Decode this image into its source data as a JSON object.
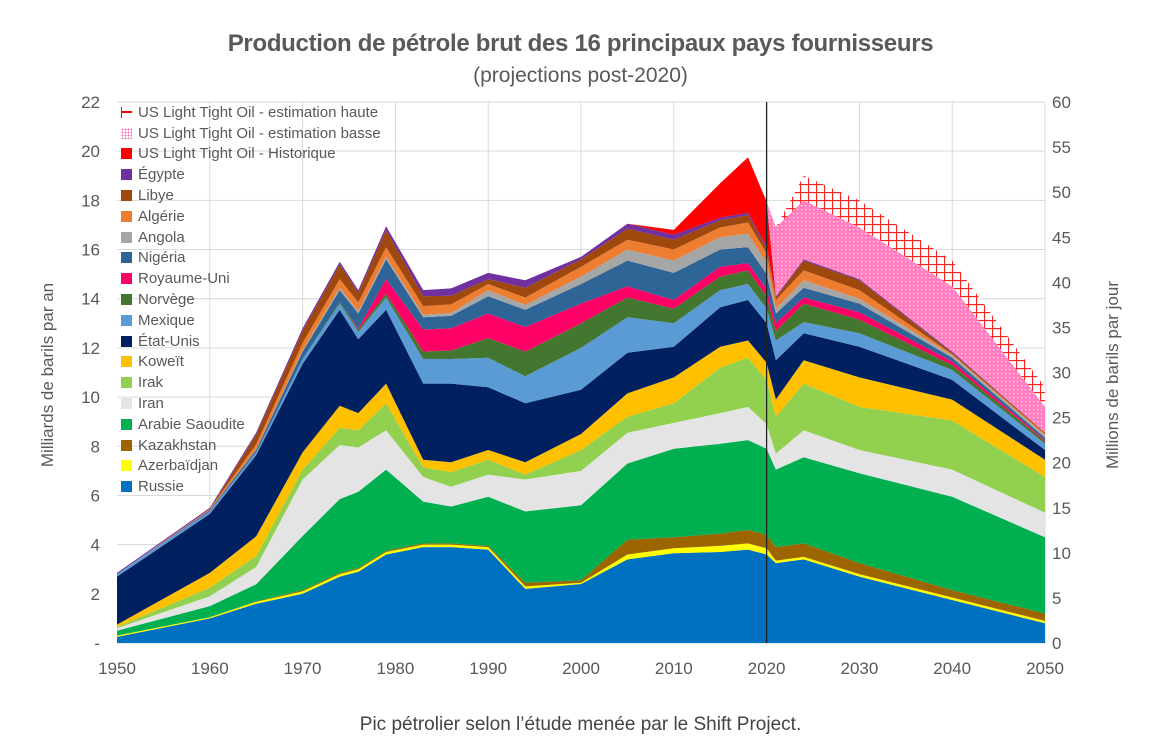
{
  "title": "Production de pétrole brut des 16 principaux pays fournisseurs",
  "subtitle": "(projections post-2020)",
  "caption": "Pic pétrolier selon l’étude menée par le Shift Project.",
  "chart_data": {
    "type": "area",
    "stacked": true,
    "title": "Production de pétrole brut des 16 principaux pays fournisseurs",
    "subtitle": "(projections post-2020)",
    "ylabel": "Milliards de barils par an",
    "ylabel_right": "Millions de barils par jour",
    "xlim": [
      1950,
      2050
    ],
    "ylim": [
      0,
      22
    ],
    "ylim_right": [
      0,
      60
    ],
    "xticks": [
      "1950",
      "1960",
      "1970",
      "1980",
      "1990",
      "2000",
      "2010",
      "2020",
      "2030",
      "2040",
      "2050"
    ],
    "yticks_left": [
      "-",
      "2",
      "4",
      "6",
      "8",
      "10",
      "12",
      "14",
      "16",
      "18",
      "20",
      "22"
    ],
    "yticks_right": [
      "0",
      "5",
      "10",
      "15",
      "20",
      "25",
      "30",
      "35",
      "40",
      "45",
      "50",
      "55",
      "60"
    ],
    "grid": true,
    "annotation_line_year": 2020,
    "legend_position": "top-left",
    "x": [
      1950,
      1960,
      1965,
      1970,
      1974,
      1976,
      1979,
      1983,
      1986,
      1990,
      1994,
      2000,
      2005,
      2010,
      2015,
      2018,
      2020,
      2021,
      2024,
      2030,
      2040,
      2050
    ],
    "series": [
      {
        "name": "Russie",
        "color": "#0070C0",
        "values": [
          0.25,
          1.0,
          1.6,
          2.0,
          2.7,
          2.9,
          3.6,
          3.9,
          3.9,
          3.8,
          2.2,
          2.4,
          3.4,
          3.65,
          3.7,
          3.8,
          3.6,
          3.25,
          3.4,
          2.7,
          1.75,
          0.8
        ]
      },
      {
        "name": "Azerbaïdjan",
        "color": "#FFFF00",
        "values": [
          0.05,
          0.05,
          0.07,
          0.1,
          0.1,
          0.1,
          0.1,
          0.1,
          0.1,
          0.1,
          0.1,
          0.05,
          0.2,
          0.2,
          0.25,
          0.25,
          0.25,
          0.1,
          0.1,
          0.1,
          0.1,
          0.1
        ]
      },
      {
        "name": "Kazakhstan",
        "color": "#9C6500",
        "values": [
          0,
          0,
          0.02,
          0.05,
          0.05,
          0.05,
          0.05,
          0.05,
          0.05,
          0.05,
          0.15,
          0.1,
          0.6,
          0.45,
          0.5,
          0.55,
          0.55,
          0.55,
          0.55,
          0.45,
          0.3,
          0.3
        ]
      },
      {
        "name": "Arabie Saoudite",
        "color": "#00B050",
        "values": [
          0.2,
          0.45,
          0.7,
          2.2,
          3.0,
          3.1,
          3.3,
          1.7,
          1.5,
          2.0,
          2.9,
          3.05,
          3.1,
          3.6,
          3.65,
          3.65,
          3.5,
          3.15,
          3.5,
          3.65,
          3.8,
          3.1
        ]
      },
      {
        "name": "Iran",
        "color": "#E4E4E4",
        "values": [
          0.1,
          0.4,
          0.7,
          2.3,
          2.2,
          1.8,
          1.6,
          1.0,
          0.8,
          0.9,
          1.3,
          1.4,
          1.25,
          1.05,
          1.25,
          1.35,
          1.0,
          0.65,
          1.1,
          0.95,
          1.1,
          1.0
        ]
      },
      {
        "name": "Irak",
        "color": "#92D050",
        "values": [
          0.05,
          0.35,
          0.45,
          0.4,
          0.7,
          0.7,
          1.1,
          0.4,
          0.6,
          0.6,
          0.2,
          0.85,
          0.65,
          0.8,
          1.85,
          2.0,
          1.8,
          1.5,
          1.9,
          1.75,
          2.0,
          1.45
        ]
      },
      {
        "name": "Koweït",
        "color": "#FFC000",
        "values": [
          0.1,
          0.6,
          0.8,
          0.7,
          0.9,
          0.7,
          0.8,
          0.3,
          0.4,
          0.4,
          0.5,
          0.65,
          0.95,
          1.05,
          0.85,
          0.7,
          0.7,
          0.7,
          0.95,
          1.2,
          0.85,
          0.7
        ]
      },
      {
        "name": "État-Unis",
        "color": "#002060",
        "values": [
          1.95,
          2.4,
          3.3,
          3.6,
          3.9,
          3.0,
          3.0,
          3.1,
          3.2,
          2.55,
          2.4,
          1.8,
          1.65,
          1.25,
          1.6,
          1.65,
          1.6,
          1.6,
          1.1,
          1.25,
          0.8,
          0.4
        ]
      },
      {
        "name": "Mexique",
        "color": "#5B9BD5",
        "values": [
          0.1,
          0.1,
          0.12,
          0.2,
          0.25,
          0.3,
          0.5,
          1.0,
          1.0,
          1.2,
          1.1,
          1.7,
          1.45,
          0.95,
          0.7,
          0.65,
          0.6,
          0.8,
          0.45,
          0.55,
          0.4,
          0.25
        ]
      },
      {
        "name": "Norvège",
        "color": "#43772F",
        "values": [
          0,
          0,
          0,
          0,
          0.05,
          0.1,
          0.15,
          0.3,
          0.35,
          0.8,
          1.0,
          1.0,
          0.8,
          0.6,
          0.55,
          0.55,
          0.5,
          0.4,
          0.75,
          0.55,
          0.2,
          0.1
        ]
      },
      {
        "name": "Royaume-Uni",
        "color": "#FF0066",
        "values": [
          0,
          0,
          0,
          0,
          0,
          0.05,
          0.6,
          0.9,
          0.9,
          1.0,
          1.0,
          0.8,
          0.45,
          0.35,
          0.4,
          0.3,
          0.3,
          0.3,
          0.25,
          0.3,
          0.15,
          0.05
        ]
      },
      {
        "name": "Nigéria",
        "color": "#2E6496",
        "values": [
          0,
          0.05,
          0.1,
          0.3,
          0.5,
          0.6,
          0.8,
          0.5,
          0.5,
          0.7,
          0.7,
          0.8,
          1.05,
          1.1,
          0.7,
          0.65,
          0.6,
          0.4,
          0.4,
          0.35,
          0.15,
          0.1
        ]
      },
      {
        "name": "Angola",
        "color": "#A6A6A6",
        "values": [
          0,
          0,
          0.02,
          0.05,
          0.1,
          0.1,
          0.1,
          0.1,
          0.12,
          0.25,
          0.2,
          0.3,
          0.45,
          0.5,
          0.5,
          0.55,
          0.45,
          0.2,
          0.3,
          0.2,
          0.1,
          0.1
        ]
      },
      {
        "name": "Algérie",
        "color": "#ED7D31",
        "values": [
          0,
          0.05,
          0.2,
          0.3,
          0.35,
          0.35,
          0.4,
          0.35,
          0.35,
          0.25,
          0.3,
          0.4,
          0.4,
          0.45,
          0.4,
          0.45,
          0.4,
          0.35,
          0.4,
          0.35,
          0.05,
          0.05
        ]
      },
      {
        "name": "Libye",
        "color": "#9E480E",
        "values": [
          0,
          0,
          0.4,
          0.5,
          0.6,
          0.4,
          0.7,
          0.4,
          0.35,
          0.2,
          0.4,
          0.3,
          0.45,
          0.4,
          0.3,
          0.3,
          0.2,
          0.1,
          0.4,
          0.4,
          0.05,
          0.05
        ]
      },
      {
        "name": "Égypte",
        "color": "#7030A0",
        "values": [
          0.05,
          0.05,
          0.08,
          0.1,
          0.1,
          0.1,
          0.15,
          0.25,
          0.3,
          0.25,
          0.3,
          0.1,
          0.2,
          0.2,
          0.1,
          0.1,
          0.1,
          0.05,
          0.05,
          0.05,
          0.05,
          0
        ]
      },
      {
        "name": "US Light Tight Oil - Historique",
        "color": "#FF0000",
        "values": [
          0,
          0,
          0,
          0,
          0,
          0,
          0,
          0,
          0,
          0,
          0,
          0,
          0,
          0.2,
          1.4,
          2.25,
          1.8,
          0,
          0,
          0,
          0,
          0
        ]
      },
      {
        "name": "US Light Tight Oil - estimation basse",
        "color": "#FF66B2",
        "pattern": "dots",
        "values": [
          0,
          0,
          0,
          0,
          0,
          0,
          0,
          0,
          0,
          0,
          0,
          0,
          0,
          0,
          0,
          0,
          0,
          2.8,
          2.4,
          2.1,
          2.65,
          1.05
        ]
      },
      {
        "name": "US Light Tight Oil - estimation haute",
        "color": "#FF0000",
        "pattern": "grid",
        "values": [
          0,
          0,
          0,
          0,
          0,
          0,
          0,
          0,
          0,
          0,
          0,
          0,
          0,
          0,
          0,
          0,
          0,
          0,
          1.0,
          1.1,
          1.05,
          0.8
        ]
      }
    ]
  }
}
